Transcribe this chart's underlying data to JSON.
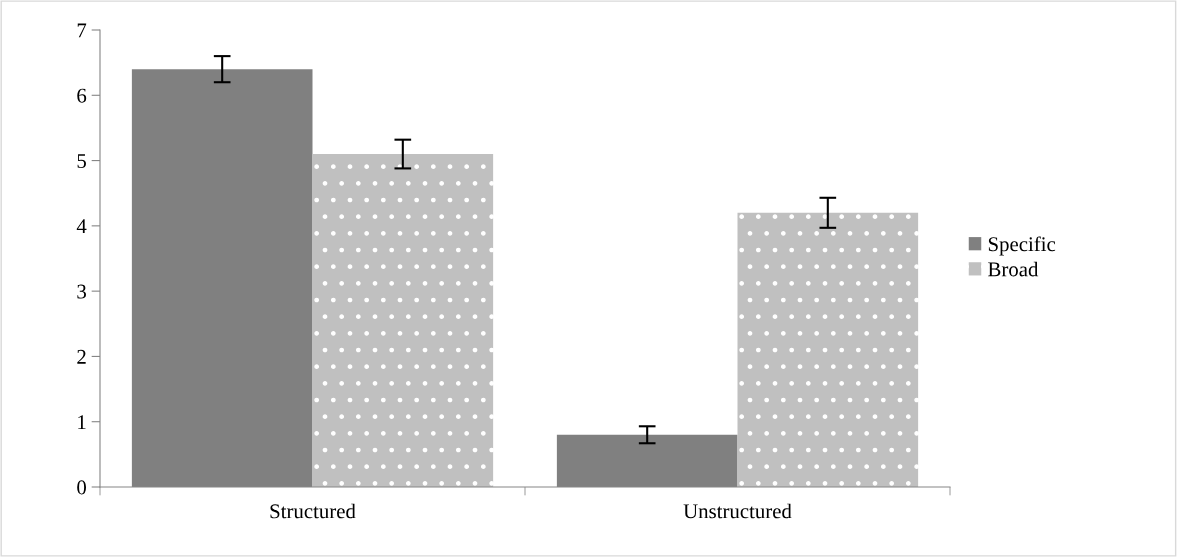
{
  "chart_data": {
    "type": "bar",
    "categories": [
      "Structured",
      "Unstructured"
    ],
    "series": [
      {
        "name": "Specific",
        "color": "#808080",
        "values": [
          6.4,
          0.8
        ],
        "errors": [
          0.2,
          0.13
        ]
      },
      {
        "name": "Broad",
        "color": "#c0c0c0",
        "values": [
          5.1,
          4.2
        ],
        "errors": [
          0.22,
          0.23
        ]
      }
    ],
    "ylim": [
      0,
      7
    ],
    "yticks": [
      0,
      1,
      2,
      3,
      4,
      5,
      6,
      7
    ],
    "grid": false,
    "legend": "right"
  }
}
